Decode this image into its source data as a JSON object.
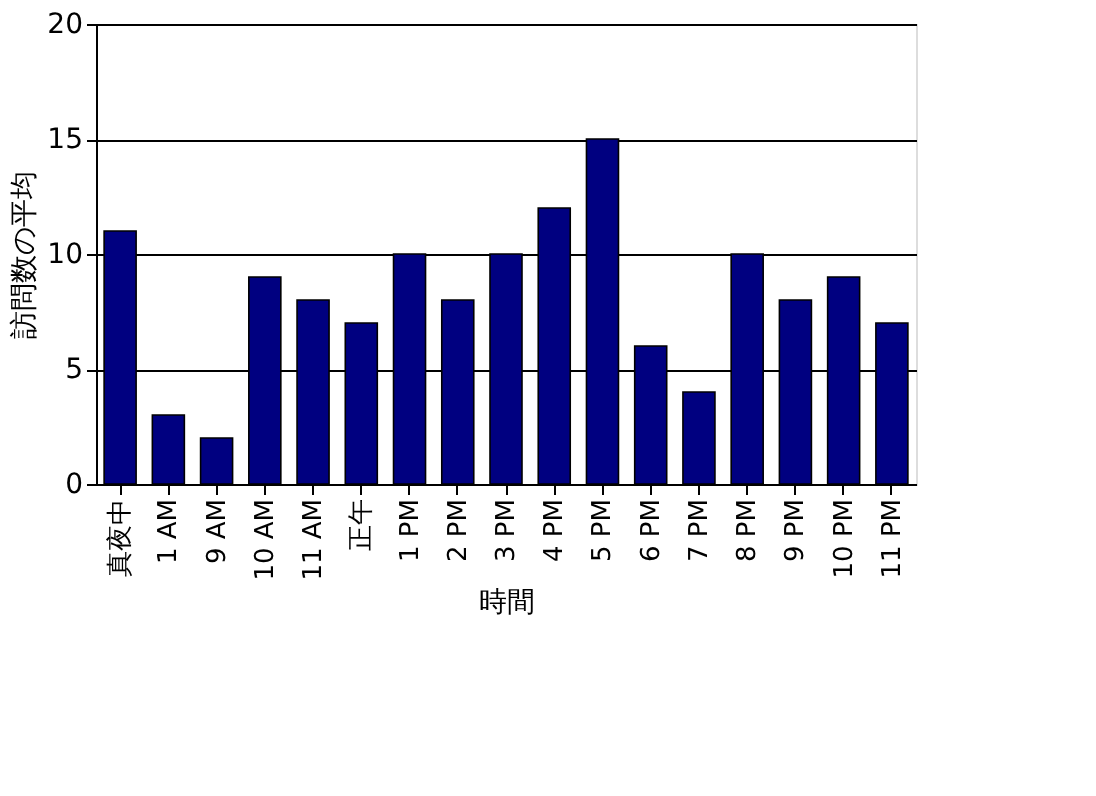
{
  "chart_data": {
    "type": "bar",
    "xlabel": "時間",
    "ylabel": "訪問数の平均",
    "categories": [
      "真夜中",
      "1 AM",
      "9 AM",
      "10 AM",
      "11 AM",
      "正午",
      "1 PM",
      "2 PM",
      "3 PM",
      "4 PM",
      "5 PM",
      "6 PM",
      "7 PM",
      "8 PM",
      "9 PM",
      "10 PM",
      "11 PM"
    ],
    "values": [
      11,
      3,
      2,
      9,
      8,
      7,
      10,
      8,
      10,
      12,
      15,
      6,
      4,
      10,
      8,
      9,
      7
    ],
    "color": "#000080",
    "ylim": [
      0,
      20
    ],
    "yticks": [
      0,
      5,
      10,
      15,
      20
    ],
    "grid": "y"
  }
}
